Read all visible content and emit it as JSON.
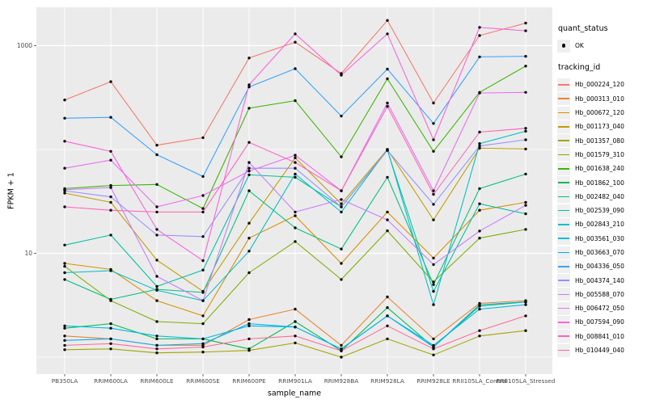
{
  "figure": {
    "y_axis": {
      "label": "FPKM + 1",
      "ticks": [
        {
          "value": 1000,
          "label": "1000"
        },
        {
          "value": 10,
          "label": "10"
        }
      ]
    },
    "x_axis": {
      "label": "sample_name",
      "categories": [
        "PB350LA",
        "RRIM600LA",
        "RRIM600LE",
        "RRIM600SE",
        "RRIM600PE",
        "RRIM901LA",
        "RRIM928BA",
        "RRIM928LA",
        "RRIM928LE",
        "RRII105LA_Control",
        "RRII105LA_Stressed"
      ]
    },
    "legend": {
      "position": "right",
      "quant_status": {
        "title": "quant_status",
        "items": [
          {
            "label": "OK",
            "marker": "black-dot"
          }
        ]
      },
      "tracking_id": {
        "title": "tracking_id"
      }
    },
    "style": {
      "panel_bg": "#EBEBEB",
      "grid_color": "#FFFFFF",
      "tick_text_color": "#4D4D4D",
      "axis_title_color": "#000000",
      "point_color": "#0A0A0A",
      "legend_key_bg": "#EFEFEF"
    }
  },
  "chart_data": {
    "type": "line",
    "title": "",
    "xlabel": "sample_name",
    "ylabel": "FPKM + 1",
    "y_scale": "log10",
    "ylim": [
      0.7,
      2400
    ],
    "y_tick_values": [
      10,
      1000
    ],
    "y_minor_gridlines": [
      1,
      100
    ],
    "grid": true,
    "legend_position": "right",
    "marker": "black point on every vertex",
    "quant_status": "OK",
    "x": [
      "PB350LA",
      "RRIM600LA",
      "RRIM600LE",
      "RRIM600SE",
      "RRIM600PE",
      "RRIM901LA",
      "RRIM928BA",
      "RRIM928LA",
      "RRIM928LE",
      "RRII105LA_Control",
      "RRII105LA_Stressed"
    ],
    "series": [
      {
        "name": "Hb_000224_120",
        "color": "#F8766D",
        "values": [
          300,
          450,
          110,
          130,
          760,
          1080,
          540,
          1750,
          280,
          1250,
          1650
        ]
      },
      {
        "name": "Hb_000313_010",
        "color": "#EA8331",
        "values": [
          1.6,
          1.5,
          1.3,
          1.3,
          2.3,
          2.9,
          1.3,
          3.8,
          1.5,
          3.3,
          3.5
        ]
      },
      {
        "name": "Hb_000672_120",
        "color": "#D89000",
        "values": [
          8,
          7,
          3.5,
          2.5,
          14,
          23,
          8,
          25,
          9,
          26,
          31
        ]
      },
      {
        "name": "Hb_001173_040",
        "color": "#C09B00",
        "values": [
          38,
          31,
          8.6,
          4.3,
          19.5,
          83,
          30,
          100,
          21,
          103,
          101
        ]
      },
      {
        "name": "Hb_001357_080",
        "color": "#A3A500",
        "values": [
          1.18,
          1.2,
          1.1,
          1.12,
          1.16,
          1.37,
          1.0,
          1.5,
          1.05,
          1.6,
          1.8
        ]
      },
      {
        "name": "Hb_001579_310",
        "color": "#7CAE00",
        "values": [
          7.5,
          3.5,
          2.2,
          2.1,
          6.5,
          13,
          5.6,
          16.5,
          5.3,
          14,
          17
        ]
      },
      {
        "name": "Hb_001638_240",
        "color": "#39B600",
        "values": [
          42,
          45,
          46,
          27,
          250,
          295,
          85,
          480,
          96,
          355,
          635
        ]
      },
      {
        "name": "Hb_001862_100",
        "color": "#00BB4E",
        "values": [
          1.9,
          2.1,
          1.5,
          1.5,
          1.2,
          2.2,
          1.15,
          3.0,
          1.25,
          3.1,
          3.4
        ]
      },
      {
        "name": "Hb_002482_040",
        "color": "#00BF7D",
        "values": [
          5.6,
          3.6,
          4.5,
          4.2,
          40,
          17.6,
          11,
          54,
          5.0,
          42,
          58
        ]
      },
      {
        "name": "Hb_002539_090",
        "color": "#00C1A3",
        "values": [
          12,
          15,
          4.8,
          6.9,
          57,
          54,
          28,
          98,
          4.3,
          30,
          24
        ]
      },
      {
        "name": "Hb_002843_210",
        "color": "#00BFC4",
        "values": [
          6.5,
          6.8,
          4.4,
          3.5,
          10.5,
          58,
          25,
          100,
          3.2,
          114,
          150
        ]
      },
      {
        "name": "Hb_003561_030",
        "color": "#00BAE0",
        "values": [
          2.0,
          1.9,
          1.6,
          1.5,
          2.0,
          1.95,
          1.2,
          2.5,
          1.3,
          2.9,
          3.2
        ]
      },
      {
        "name": "Hb_003663_070",
        "color": "#00B0F6",
        "values": [
          1.45,
          1.5,
          1.3,
          1.35,
          2.1,
          1.95,
          1.2,
          2.5,
          1.25,
          3.2,
          3.4
        ]
      },
      {
        "name": "Hb_004336_050",
        "color": "#35A2FF",
        "values": [
          200,
          204,
          89,
          55,
          400,
          600,
          210,
          595,
          178,
          780,
          790
        ]
      },
      {
        "name": "Hb_004374_140",
        "color": "#9590FF",
        "values": [
          40,
          35,
          15,
          14.5,
          66,
          66,
          28,
          98,
          29.6,
          108,
          124
        ]
      },
      {
        "name": "Hb_005588_070",
        "color": "#C77CFF",
        "values": [
          41,
          43,
          6.0,
          3.5,
          75,
          25,
          33,
          21,
          7.8,
          16.4,
          29
        ]
      },
      {
        "name": "Hb_006472_050",
        "color": "#E76BF3",
        "values": [
          66,
          79,
          28,
          36,
          62,
          88,
          40,
          280,
          40,
          350,
          355
        ]
      },
      {
        "name": "Hb_007594_090",
        "color": "#FA62DB",
        "values": [
          120,
          96,
          17,
          8.5,
          420,
          1300,
          520,
          1300,
          124,
          1500,
          1390
        ]
      },
      {
        "name": "Hb_008841_010",
        "color": "#FF62BC",
        "values": [
          28,
          26,
          25,
          25,
          117,
          75,
          40,
          260,
          37,
          147,
          160
        ]
      },
      {
        "name": "Hb_010449_040",
        "color": "#FF6A98",
        "values": [
          1.3,
          1.35,
          1.2,
          1.25,
          1.5,
          1.6,
          1.15,
          2.0,
          1.2,
          1.8,
          2.5
        ]
      }
    ]
  }
}
